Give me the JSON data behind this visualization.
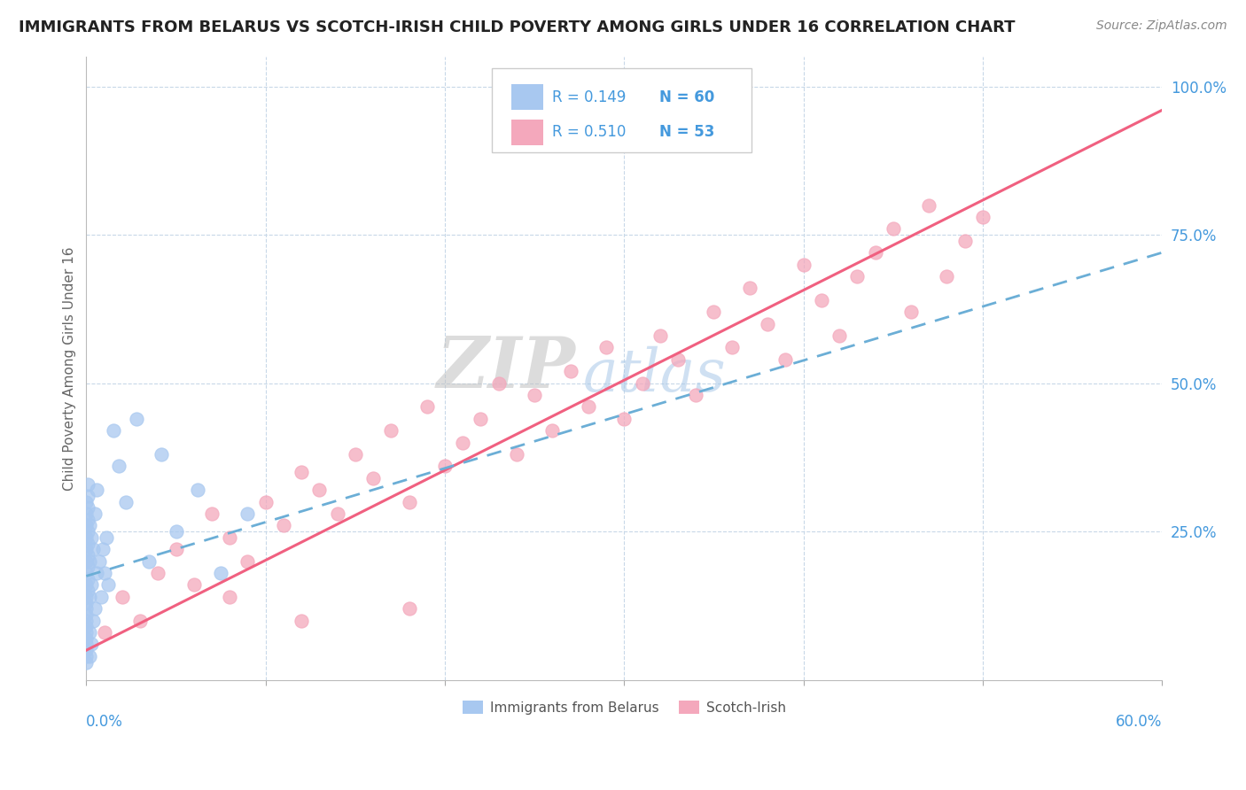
{
  "title": "IMMIGRANTS FROM BELARUS VS SCOTCH-IRISH CHILD POVERTY AMONG GIRLS UNDER 16 CORRELATION CHART",
  "source": "Source: ZipAtlas.com",
  "ylabel": "Child Poverty Among Girls Under 16",
  "legend_r1": "R = 0.149",
  "legend_n1": "N = 60",
  "legend_r2": "R = 0.510",
  "legend_n2": "N = 53",
  "color_blue": "#a8c8f0",
  "color_pink": "#f4a8bc",
  "color_blue_line": "#6baed6",
  "color_pink_line": "#f06080",
  "color_text": "#4499dd",
  "watermark_zip": "ZIP",
  "watermark_atlas": "atlas",
  "blue_x": [
    0.0,
    0.0,
    0.0,
    0.0,
    0.0,
    0.0,
    0.0,
    0.0,
    0.0,
    0.0,
    0.0,
    0.0,
    0.0,
    0.0,
    0.0,
    0.0,
    0.0,
    0.0,
    0.0,
    0.0,
    0.001,
    0.001,
    0.001,
    0.001,
    0.001,
    0.001,
    0.001,
    0.001,
    0.001,
    0.001,
    0.002,
    0.002,
    0.002,
    0.002,
    0.002,
    0.003,
    0.003,
    0.003,
    0.004,
    0.004,
    0.005,
    0.005,
    0.006,
    0.006,
    0.007,
    0.008,
    0.009,
    0.01,
    0.011,
    0.012,
    0.015,
    0.018,
    0.022,
    0.028,
    0.035,
    0.042,
    0.05,
    0.062,
    0.075,
    0.09
  ],
  "blue_y": [
    0.04,
    0.06,
    0.08,
    0.1,
    0.12,
    0.14,
    0.16,
    0.18,
    0.2,
    0.22,
    0.24,
    0.26,
    0.28,
    0.3,
    0.03,
    0.05,
    0.07,
    0.09,
    0.11,
    0.13,
    0.15,
    0.17,
    0.19,
    0.21,
    0.23,
    0.25,
    0.27,
    0.29,
    0.31,
    0.33,
    0.04,
    0.08,
    0.14,
    0.2,
    0.26,
    0.06,
    0.16,
    0.24,
    0.1,
    0.22,
    0.12,
    0.28,
    0.18,
    0.32,
    0.2,
    0.14,
    0.22,
    0.18,
    0.24,
    0.16,
    0.42,
    0.36,
    0.3,
    0.44,
    0.2,
    0.38,
    0.25,
    0.32,
    0.18,
    0.28
  ],
  "pink_x": [
    0.01,
    0.02,
    0.03,
    0.04,
    0.05,
    0.06,
    0.07,
    0.08,
    0.09,
    0.1,
    0.11,
    0.12,
    0.13,
    0.14,
    0.15,
    0.16,
    0.17,
    0.18,
    0.19,
    0.2,
    0.21,
    0.22,
    0.23,
    0.24,
    0.25,
    0.26,
    0.27,
    0.28,
    0.29,
    0.3,
    0.31,
    0.32,
    0.33,
    0.34,
    0.35,
    0.36,
    0.37,
    0.38,
    0.39,
    0.4,
    0.41,
    0.42,
    0.43,
    0.44,
    0.45,
    0.46,
    0.47,
    0.48,
    0.49,
    0.5,
    0.08,
    0.12,
    0.18
  ],
  "pink_y": [
    0.08,
    0.14,
    0.1,
    0.18,
    0.22,
    0.16,
    0.28,
    0.24,
    0.2,
    0.3,
    0.26,
    0.35,
    0.32,
    0.28,
    0.38,
    0.34,
    0.42,
    0.3,
    0.46,
    0.36,
    0.4,
    0.44,
    0.5,
    0.38,
    0.48,
    0.42,
    0.52,
    0.46,
    0.56,
    0.44,
    0.5,
    0.58,
    0.54,
    0.48,
    0.62,
    0.56,
    0.66,
    0.6,
    0.54,
    0.7,
    0.64,
    0.58,
    0.68,
    0.72,
    0.76,
    0.62,
    0.8,
    0.68,
    0.74,
    0.78,
    0.14,
    0.1,
    0.12
  ],
  "pink_line_x0": 0.0,
  "pink_line_y0": 0.05,
  "pink_line_x1": 0.6,
  "pink_line_y1": 0.96,
  "blue_line_x0": 0.0,
  "blue_line_y0": 0.175,
  "blue_line_x1": 0.6,
  "blue_line_y1": 0.72,
  "xlim": [
    0.0,
    0.6
  ],
  "ylim": [
    0.0,
    1.05
  ],
  "yticks": [
    0.0,
    0.25,
    0.5,
    0.75,
    1.0
  ],
  "ytick_labels": [
    "",
    "25.0%",
    "50.0%",
    "75.0%",
    "100.0%"
  ]
}
